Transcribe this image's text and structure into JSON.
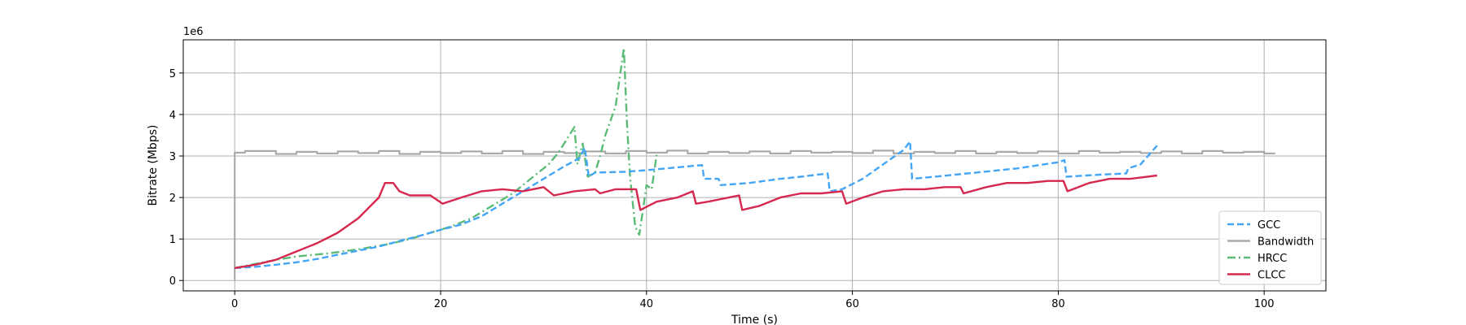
{
  "chart_data": {
    "type": "line",
    "xlabel": "Time (s)",
    "ylabel": "Bitrate (Mbps)",
    "y_offset_text": "1e6",
    "xlim": [
      -5,
      106
    ],
    "ylim": [
      -250000,
      5800000
    ],
    "xticks": [
      0,
      20,
      40,
      60,
      80,
      100
    ],
    "xtick_labels": [
      "0",
      "20",
      "40",
      "60",
      "80",
      "100"
    ],
    "yticks": [
      0,
      1000000,
      2000000,
      3000000,
      4000000,
      5000000
    ],
    "ytick_labels": [
      "0",
      "1",
      "2",
      "3",
      "4",
      "5"
    ],
    "grid": true,
    "legend_position": "lower-right",
    "series": [
      {
        "name": "GCC",
        "color": "#42a5f5",
        "dash": "dashed",
        "points": [
          [
            0,
            300000
          ],
          [
            2,
            330000
          ],
          [
            4,
            380000
          ],
          [
            6,
            440000
          ],
          [
            8,
            520000
          ],
          [
            10,
            620000
          ],
          [
            12,
            720000
          ],
          [
            14,
            820000
          ],
          [
            16,
            950000
          ],
          [
            18,
            1080000
          ],
          [
            20,
            1220000
          ],
          [
            22,
            1350000
          ],
          [
            24,
            1550000
          ],
          [
            26,
            1850000
          ],
          [
            28,
            2150000
          ],
          [
            30,
            2450000
          ],
          [
            32,
            2750000
          ],
          [
            33.5,
            2950000
          ],
          [
            34,
            3200000
          ],
          [
            34.4,
            2500000
          ],
          [
            35,
            2600000
          ],
          [
            38,
            2620000
          ],
          [
            41,
            2680000
          ],
          [
            44,
            2750000
          ],
          [
            45.4,
            2780000
          ],
          [
            45.6,
            2450000
          ],
          [
            47,
            2450000
          ],
          [
            47.2,
            2300000
          ],
          [
            50,
            2350000
          ],
          [
            53,
            2450000
          ],
          [
            55,
            2500000
          ],
          [
            57.6,
            2580000
          ],
          [
            57.8,
            2150000
          ],
          [
            59,
            2200000
          ],
          [
            61,
            2450000
          ],
          [
            63,
            2800000
          ],
          [
            65,
            3150000
          ],
          [
            65.6,
            3350000
          ],
          [
            65.8,
            2450000
          ],
          [
            68,
            2500000
          ],
          [
            72,
            2600000
          ],
          [
            76,
            2700000
          ],
          [
            80,
            2850000
          ],
          [
            80.6,
            2900000
          ],
          [
            80.8,
            2500000
          ],
          [
            84,
            2550000
          ],
          [
            86.6,
            2580000
          ],
          [
            86.8,
            2700000
          ],
          [
            88,
            2800000
          ],
          [
            89.6,
            3250000
          ]
        ]
      },
      {
        "name": "Bandwidth",
        "color": "#aaaaaa",
        "dash": "solid",
        "points": [
          [
            0,
            0
          ],
          [
            0,
            3080000
          ],
          [
            1,
            3120000
          ],
          [
            4,
            3050000
          ],
          [
            6,
            3100000
          ],
          [
            8,
            3060000
          ],
          [
            10,
            3110000
          ],
          [
            12,
            3070000
          ],
          [
            14,
            3120000
          ],
          [
            16,
            3050000
          ],
          [
            18,
            3100000
          ],
          [
            20,
            3070000
          ],
          [
            22,
            3110000
          ],
          [
            24,
            3060000
          ],
          [
            26,
            3120000
          ],
          [
            28,
            3050000
          ],
          [
            30,
            3100000
          ],
          [
            32,
            3070000
          ],
          [
            34,
            3110000
          ],
          [
            36,
            3060000
          ],
          [
            38,
            3120000
          ],
          [
            40,
            3080000
          ],
          [
            42,
            3130000
          ],
          [
            44,
            3060000
          ],
          [
            46,
            3100000
          ],
          [
            48,
            3070000
          ],
          [
            50,
            3110000
          ],
          [
            52,
            3060000
          ],
          [
            54,
            3120000
          ],
          [
            56,
            3080000
          ],
          [
            58,
            3100000
          ],
          [
            60,
            3070000
          ],
          [
            62,
            3130000
          ],
          [
            64,
            3060000
          ],
          [
            66,
            3100000
          ],
          [
            68,
            3070000
          ],
          [
            70,
            3120000
          ],
          [
            72,
            3060000
          ],
          [
            74,
            3100000
          ],
          [
            76,
            3070000
          ],
          [
            78,
            3110000
          ],
          [
            80,
            3060000
          ],
          [
            82,
            3120000
          ],
          [
            84,
            3080000
          ],
          [
            86,
            3100000
          ],
          [
            88,
            3070000
          ],
          [
            90,
            3110000
          ],
          [
            92,
            3060000
          ],
          [
            94,
            3120000
          ],
          [
            96,
            3080000
          ],
          [
            98,
            3100000
          ],
          [
            100,
            3060000
          ],
          [
            101,
            3080000
          ]
        ]
      },
      {
        "name": "HRCC",
        "color": "#5dbb78",
        "dash": "dashdot",
        "points": [
          [
            0,
            300000
          ],
          [
            3,
            450000
          ],
          [
            6,
            580000
          ],
          [
            9,
            650000
          ],
          [
            12,
            750000
          ],
          [
            15,
            880000
          ],
          [
            17,
            1000000
          ],
          [
            19,
            1150000
          ],
          [
            21,
            1300000
          ],
          [
            23,
            1500000
          ],
          [
            25,
            1800000
          ],
          [
            27,
            2100000
          ],
          [
            29,
            2500000
          ],
          [
            30.5,
            2800000
          ],
          [
            31.5,
            3100000
          ],
          [
            32.5,
            3500000
          ],
          [
            33,
            3700000
          ],
          [
            33.3,
            2800000
          ],
          [
            33.8,
            3300000
          ],
          [
            34.3,
            2500000
          ],
          [
            35,
            2600000
          ],
          [
            35.5,
            3000000
          ],
          [
            36,
            3500000
          ],
          [
            37,
            4200000
          ],
          [
            37.8,
            5600000
          ],
          [
            38.1,
            3800000
          ],
          [
            38.4,
            2500000
          ],
          [
            38.9,
            1300000
          ],
          [
            39.3,
            1100000
          ],
          [
            39.6,
            1600000
          ],
          [
            40,
            2300000
          ],
          [
            40.5,
            2200000
          ],
          [
            41,
            3050000
          ]
        ]
      },
      {
        "name": "CLCC",
        "color": "#d6284f",
        "dash": "solid",
        "points": [
          [
            0,
            300000
          ],
          [
            2,
            380000
          ],
          [
            4,
            500000
          ],
          [
            6,
            700000
          ],
          [
            8,
            900000
          ],
          [
            10,
            1150000
          ],
          [
            12,
            1500000
          ],
          [
            14,
            2000000
          ],
          [
            14.6,
            2350000
          ],
          [
            15.4,
            2350000
          ],
          [
            16,
            2150000
          ],
          [
            17,
            2050000
          ],
          [
            19,
            2050000
          ],
          [
            20.2,
            1850000
          ],
          [
            22,
            2000000
          ],
          [
            24,
            2150000
          ],
          [
            26,
            2200000
          ],
          [
            28,
            2150000
          ],
          [
            30,
            2250000
          ],
          [
            31,
            2050000
          ],
          [
            33,
            2150000
          ],
          [
            35,
            2200000
          ],
          [
            35.5,
            2100000
          ],
          [
            37,
            2200000
          ],
          [
            39,
            2200000
          ],
          [
            39.4,
            1700000
          ],
          [
            41,
            1900000
          ],
          [
            43,
            2000000
          ],
          [
            44.5,
            2150000
          ],
          [
            44.8,
            1850000
          ],
          [
            46,
            1900000
          ],
          [
            48,
            2000000
          ],
          [
            49,
            2050000
          ],
          [
            49.3,
            1700000
          ],
          [
            51,
            1800000
          ],
          [
            53,
            2000000
          ],
          [
            55,
            2100000
          ],
          [
            57,
            2100000
          ],
          [
            59,
            2150000
          ],
          [
            59.4,
            1850000
          ],
          [
            61,
            2000000
          ],
          [
            63,
            2150000
          ],
          [
            65,
            2200000
          ],
          [
            67,
            2200000
          ],
          [
            69,
            2250000
          ],
          [
            70.5,
            2250000
          ],
          [
            70.8,
            2100000
          ],
          [
            73,
            2250000
          ],
          [
            75,
            2350000
          ],
          [
            77,
            2350000
          ],
          [
            79,
            2400000
          ],
          [
            80.5,
            2400000
          ],
          [
            80.9,
            2150000
          ],
          [
            83,
            2350000
          ],
          [
            85,
            2450000
          ],
          [
            87,
            2450000
          ],
          [
            89.6,
            2530000
          ]
        ]
      }
    ]
  }
}
